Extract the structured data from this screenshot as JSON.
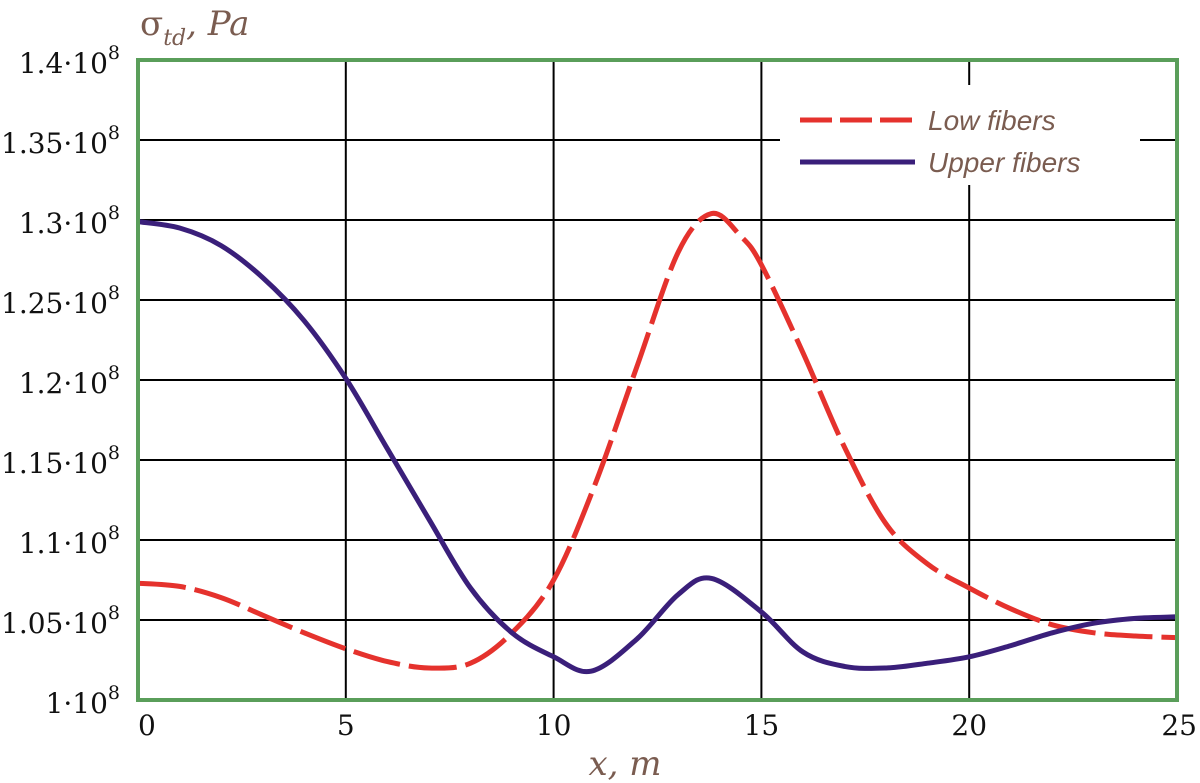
{
  "chart_data": {
    "type": "line",
    "ylabel": {
      "symbol": "σ",
      "subscript": "td",
      "unit": ", Pa"
    },
    "xlabel": "x, m",
    "xlim": [
      0,
      25
    ],
    "ylim": [
      100000000,
      140000000
    ],
    "x_ticks": [
      "0",
      "5",
      "10",
      "15",
      "20",
      "25"
    ],
    "y_ticks": [
      {
        "mantissa": "1",
        "exp": "8"
      },
      {
        "mantissa": "1.05",
        "exp": "8"
      },
      {
        "mantissa": "1.1",
        "exp": "8"
      },
      {
        "mantissa": "1.15",
        "exp": "8"
      },
      {
        "mantissa": "1.2",
        "exp": "8"
      },
      {
        "mantissa": "1.25",
        "exp": "8"
      },
      {
        "mantissa": "1.3",
        "exp": "8"
      },
      {
        "mantissa": "1.35",
        "exp": "8"
      },
      {
        "mantissa": "1.4",
        "exp": "8"
      }
    ],
    "grid": true,
    "legend_position": "top-right",
    "frame_color": "#5a9e5a",
    "series": [
      {
        "name": "Low fibers",
        "color": "#e5322d",
        "style": "dashed",
        "x": [
          0,
          1,
          2,
          3,
          4,
          5,
          6,
          7,
          8,
          9,
          10,
          11,
          12,
          13,
          13.8,
          14.5,
          15,
          16,
          17,
          18,
          19,
          20,
          21,
          22,
          23,
          24,
          25
        ],
        "y": [
          107300000,
          107100000,
          106400000,
          105300000,
          104200000,
          103200000,
          102400000,
          102000000,
          102300000,
          104200000,
          107500000,
          113500000,
          120800000,
          128000000,
          130400000,
          129000000,
          127200000,
          121700000,
          115800000,
          111000000,
          108500000,
          107000000,
          105700000,
          104700000,
          104200000,
          104000000,
          103900000
        ]
      },
      {
        "name": "Upper fibers",
        "color": "#3a1f7a",
        "style": "solid",
        "x": [
          0,
          1,
          2,
          3,
          4,
          5,
          6,
          7,
          8,
          9,
          10,
          10.9,
          12,
          13,
          13.8,
          15,
          16,
          17,
          18,
          19,
          20,
          21,
          22,
          23,
          24,
          25
        ],
        "y": [
          129900000,
          129500000,
          128400000,
          126400000,
          123700000,
          120100000,
          115700000,
          111300000,
          107000000,
          104200000,
          102700000,
          101800000,
          103800000,
          106600000,
          107600000,
          105500000,
          103000000,
          102100000,
          102000000,
          102300000,
          102700000,
          103400000,
          104200000,
          104800000,
          105100000,
          105200000
        ]
      }
    ]
  }
}
